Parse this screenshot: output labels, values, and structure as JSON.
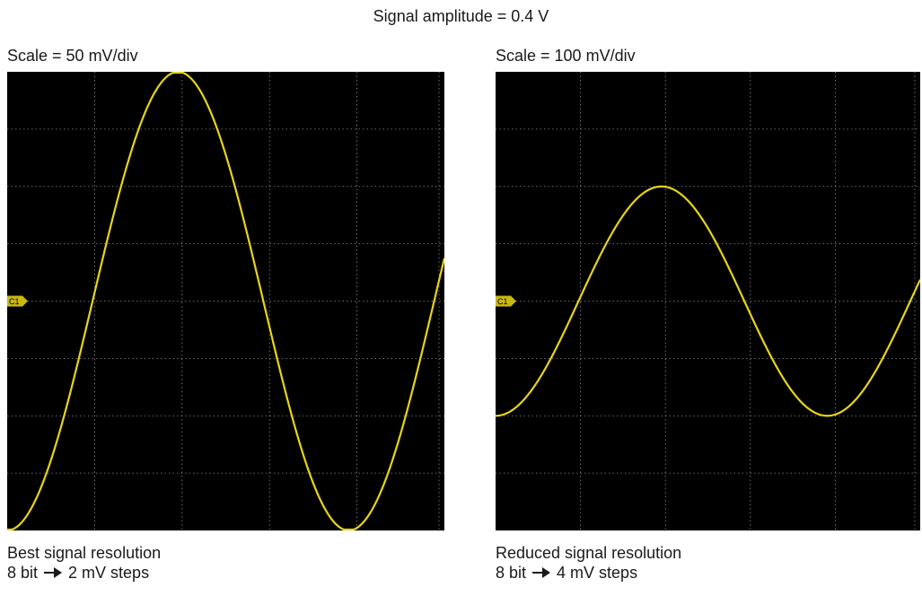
{
  "title": "Signal amplitude = 0.4 V",
  "panels": [
    {
      "scale_label": "Scale = 50 mV/div",
      "channel_marker": "C1",
      "caption_line1": "Best signal resolution",
      "caption_bits": "8 bit",
      "caption_steps": "2 mV steps",
      "waveform": {
        "amplitude_divisions": 4,
        "cycles_shown": 1.28,
        "start_phase_deg": -90
      }
    },
    {
      "scale_label": "Scale = 100 mV/div",
      "channel_marker": "C1",
      "caption_line1": "Reduced signal resolution",
      "caption_bits": "8 bit",
      "caption_steps": "4 mV steps",
      "waveform": {
        "amplitude_divisions": 2,
        "cycles_shown": 1.28,
        "start_phase_deg": -90
      }
    }
  ],
  "colors": {
    "trace": "#e8d418",
    "screen": "#000000",
    "grid": "#8a8a8a",
    "marker": "#c9b80f"
  }
}
